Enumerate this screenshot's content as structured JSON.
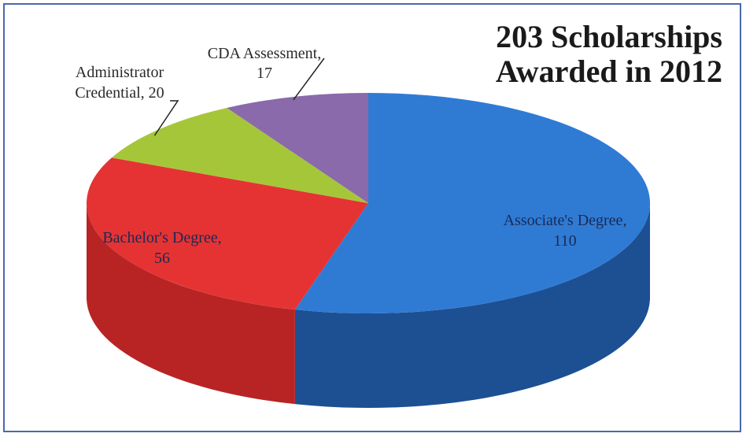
{
  "chart_data": {
    "type": "pie",
    "title_lines": [
      "203 Scholarships",
      "Awarded in 2012"
    ],
    "slices": [
      {
        "label": "Associate's Degree",
        "value": 110,
        "color": "#2f7bd4",
        "side_color": "#1d4f93"
      },
      {
        "label": "Bachelor's Degree",
        "value": 56,
        "color": "#e53333",
        "side_color": "#b82424"
      },
      {
        "label": "Administrator Credential",
        "value": 20,
        "color": "#a6c63a",
        "side_color": "#7d9527"
      },
      {
        "label": "CDA Assessment",
        "value": 17,
        "color": "#8a6aaa",
        "side_color": "#5e4878"
      }
    ],
    "data_labels": {
      "associates": [
        "Associate's Degree,",
        "110"
      ],
      "bachelors": [
        "Bachelor's Degree,",
        "56"
      ],
      "administrator": [
        "Administrator",
        "Credential, 20"
      ],
      "cda": [
        "CDA Assessment,",
        "17"
      ]
    },
    "style": "3d-pie"
  }
}
